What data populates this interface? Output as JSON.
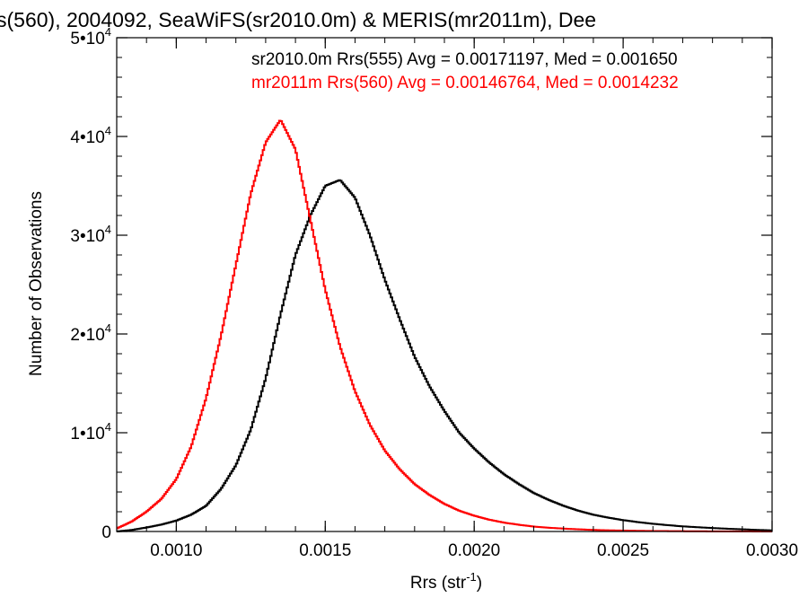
{
  "chart_data": {
    "type": "line",
    "title": "s(560), 2004092, SeaWiFS(sr2010.0m) & MERIS(mr2011m), Dee",
    "xlabel": "Rrs (str",
    "xlabel_sup": "-1",
    "xlabel_close": ")",
    "ylabel": "Number of Observations",
    "xlim": [
      0.0008,
      0.003
    ],
    "ylim": [
      0,
      50000
    ],
    "grid": false,
    "legend_position": "top-right",
    "x_ticks": [
      {
        "value": 0.001,
        "label": "0.0010"
      },
      {
        "value": 0.0015,
        "label": "0.0015"
      },
      {
        "value": 0.002,
        "label": "0.0020"
      },
      {
        "value": 0.0025,
        "label": "0.0025"
      },
      {
        "value": 0.003,
        "label": "0.0030"
      }
    ],
    "y_ticks": [
      {
        "value": 0,
        "base": "0",
        "exp": ""
      },
      {
        "value": 10000,
        "base": "1•10",
        "exp": "4"
      },
      {
        "value": 20000,
        "base": "2•10",
        "exp": "4"
      },
      {
        "value": 30000,
        "base": "3•10",
        "exp": "4"
      },
      {
        "value": 40000,
        "base": "4•10",
        "exp": "4"
      },
      {
        "value": 50000,
        "base": "5•10",
        "exp": "4"
      }
    ],
    "series": [
      {
        "name": "sr2010.0m Rrs(555) Avg = 0.00171197, Med = 0.001650",
        "color": "#000000",
        "x": [
          0.0008,
          0.00085,
          0.0009,
          0.00095,
          0.001,
          0.00105,
          0.0011,
          0.00115,
          0.0012,
          0.00125,
          0.0013,
          0.00135,
          0.0014,
          0.00145,
          0.0015,
          0.00155,
          0.0016,
          0.00165,
          0.0017,
          0.00175,
          0.0018,
          0.00185,
          0.0019,
          0.00195,
          0.002,
          0.00205,
          0.0021,
          0.00215,
          0.0022,
          0.00225,
          0.0023,
          0.00235,
          0.0024,
          0.00245,
          0.0025,
          0.00255,
          0.0026,
          0.00265,
          0.0027,
          0.00275,
          0.0028,
          0.00285,
          0.0029,
          0.00295,
          0.003
        ],
        "y": [
          0,
          150,
          400,
          700,
          1100,
          1700,
          2600,
          4300,
          6700,
          10300,
          15500,
          22000,
          28000,
          32000,
          35000,
          35600,
          33800,
          30000,
          25500,
          21500,
          17700,
          14700,
          12200,
          10000,
          8400,
          7000,
          5800,
          4800,
          3900,
          3200,
          2600,
          2100,
          1700,
          1400,
          1150,
          950,
          780,
          640,
          520,
          430,
          350,
          280,
          220,
          160,
          110
        ]
      },
      {
        "name": "mr2011m Rrs(560) Avg = 0.00146764, Med = 0.0014232",
        "color": "#ff0000",
        "x": [
          0.0008,
          0.00085,
          0.0009,
          0.00095,
          0.001,
          0.00105,
          0.0011,
          0.00115,
          0.0012,
          0.00125,
          0.0013,
          0.00135,
          0.0014,
          0.00145,
          0.0015,
          0.00155,
          0.0016,
          0.00165,
          0.0017,
          0.00175,
          0.0018,
          0.00185,
          0.0019,
          0.00195,
          0.002,
          0.00205,
          0.0021,
          0.00215,
          0.0022,
          0.00225,
          0.0023,
          0.00235,
          0.0024,
          0.00245,
          0.0025,
          0.00255,
          0.0026,
          0.00265,
          0.0027,
          0.00275,
          0.0028,
          0.00285,
          0.0029,
          0.00295,
          0.003
        ],
        "y": [
          300,
          1000,
          2000,
          3300,
          5300,
          8600,
          13500,
          19800,
          27000,
          34200,
          39400,
          41700,
          38700,
          31600,
          24500,
          18700,
          14200,
          10800,
          8200,
          6300,
          4800,
          3700,
          2800,
          2100,
          1600,
          1200,
          900,
          680,
          500,
          380,
          290,
          220,
          160,
          120,
          90,
          70,
          50,
          40,
          30,
          20,
          15,
          10,
          8,
          5,
          3
        ]
      }
    ]
  }
}
